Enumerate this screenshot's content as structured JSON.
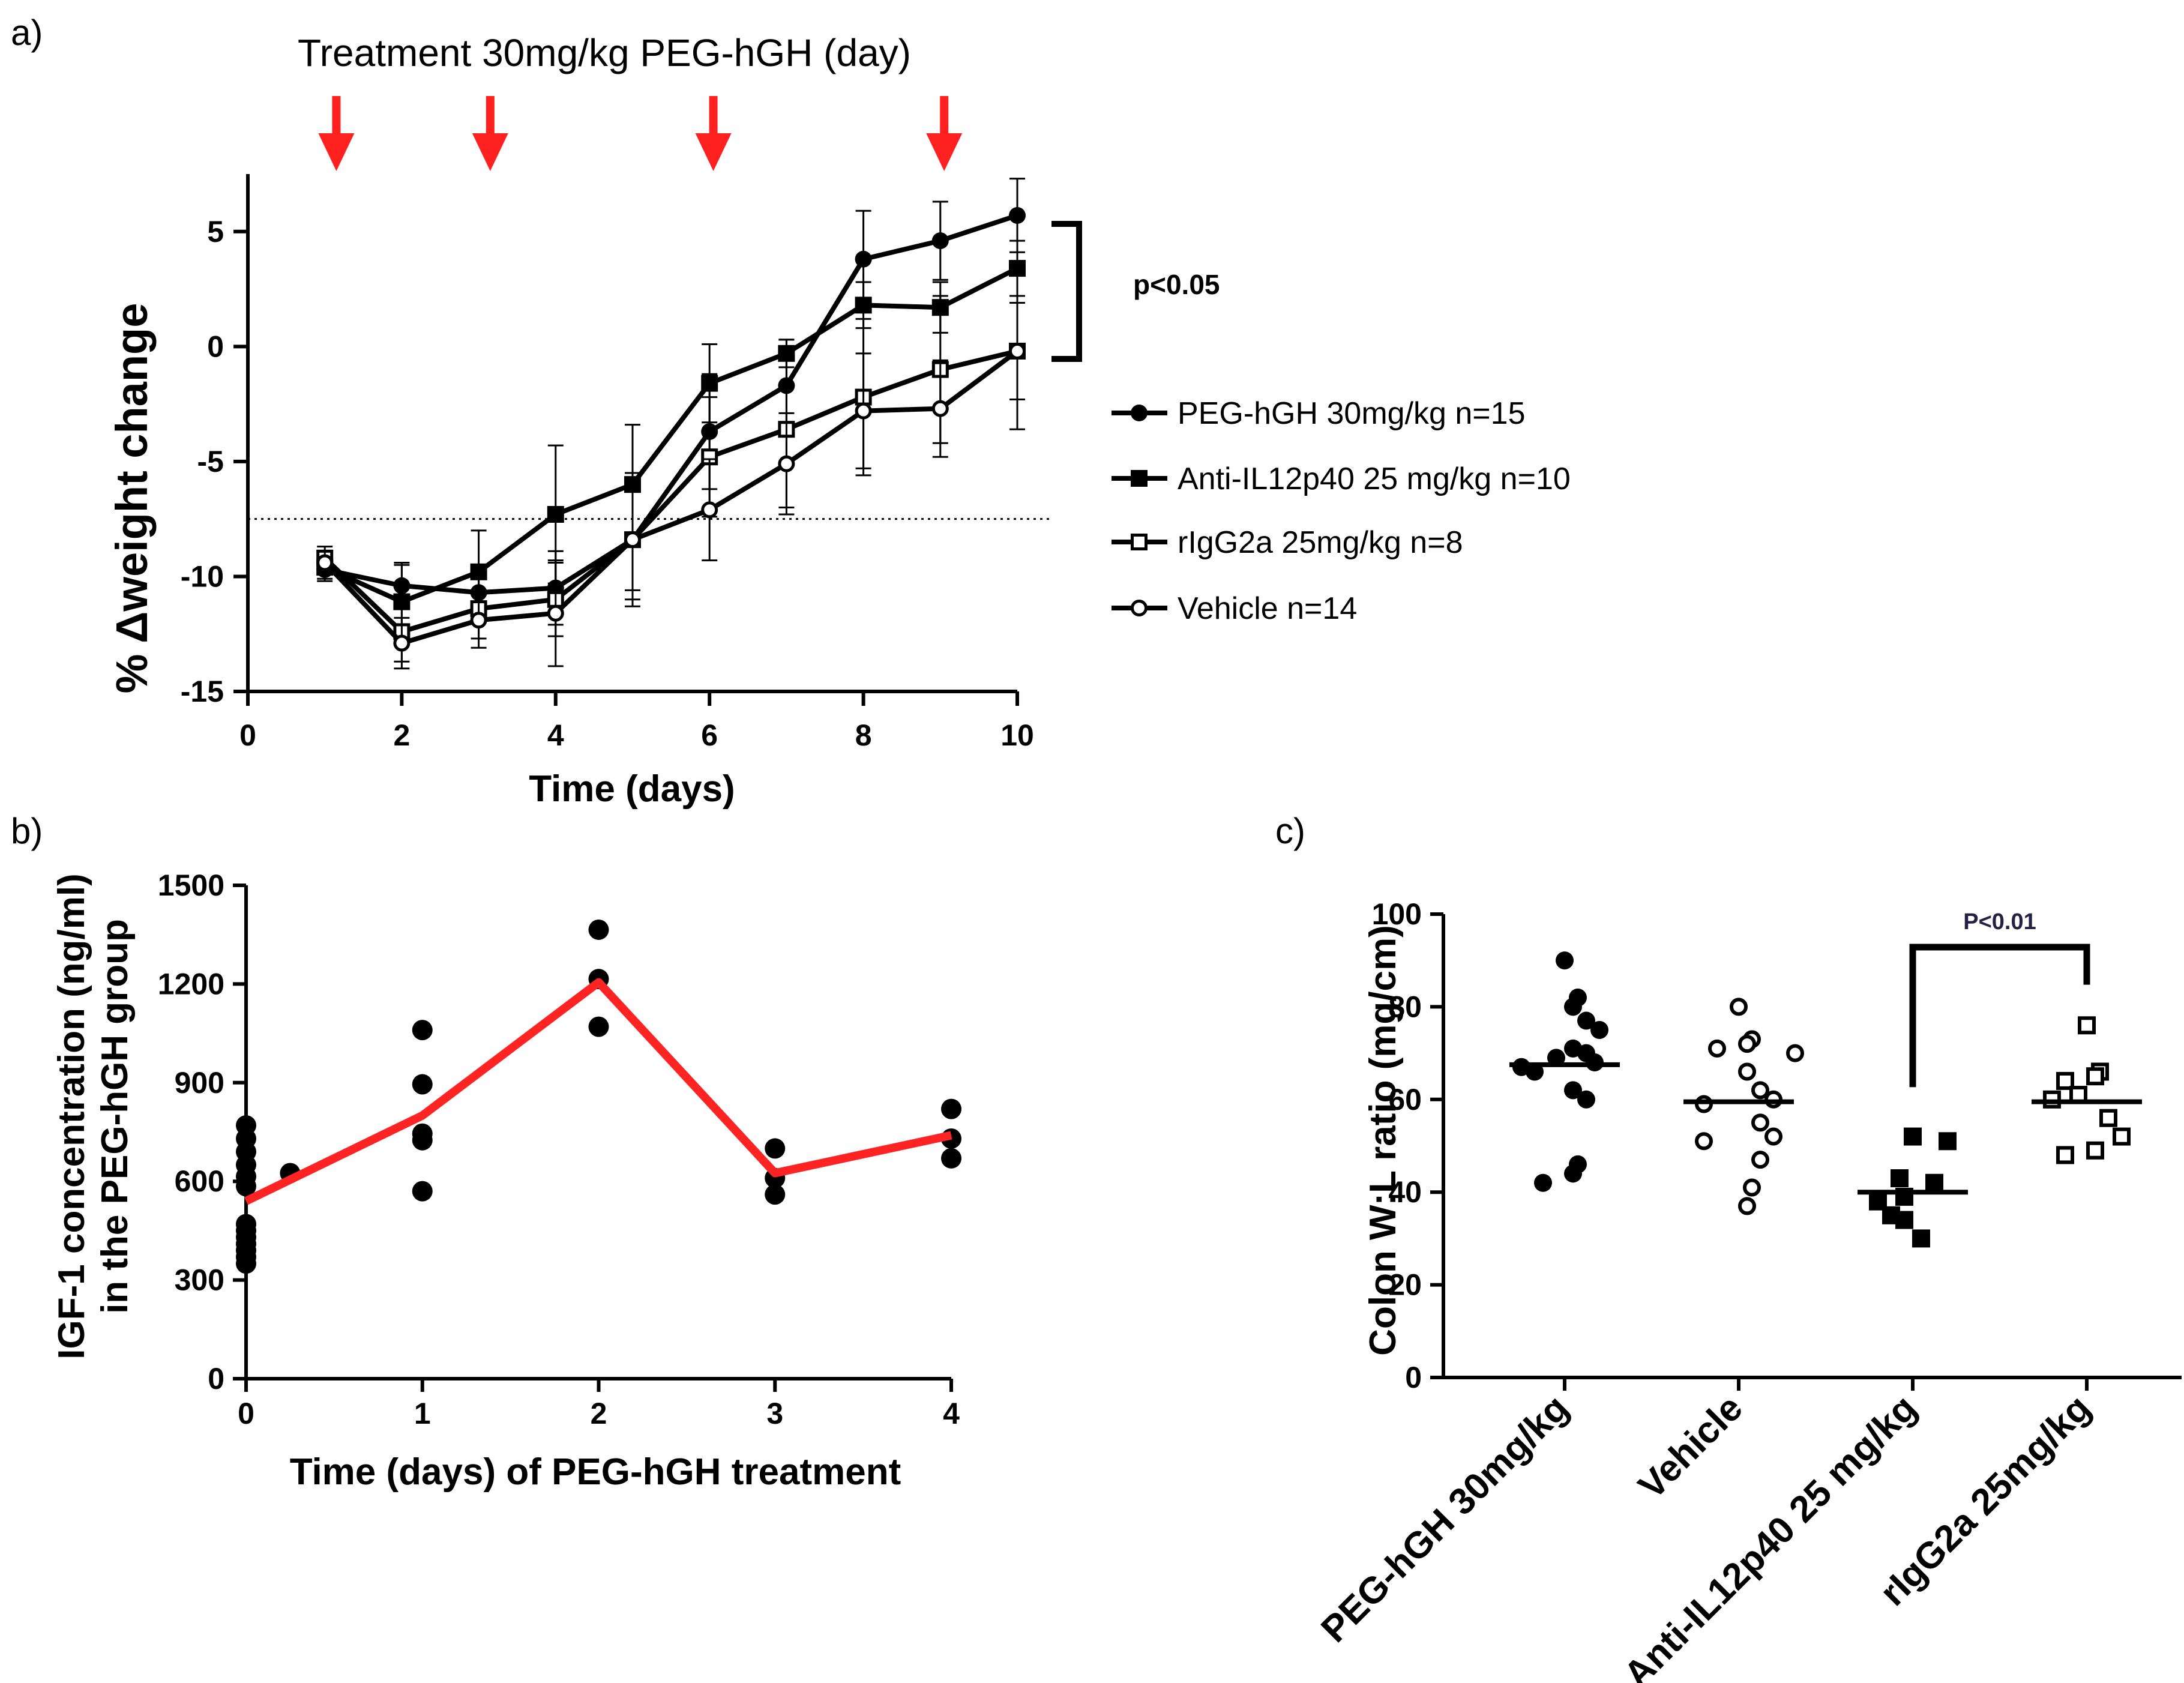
{
  "panel_labels": {
    "a": "a)",
    "b": "b)",
    "c": "c)"
  },
  "colors": {
    "arrow": "#ff2020",
    "mean_line": "#ff2424",
    "ink": "#000000"
  },
  "chart_data": [
    {
      "id": "a",
      "type": "line",
      "title": "Treatment 30mg/kg PEG-hGH (day)",
      "xlabel": "Time (days)",
      "ylabel": "% Δweight change",
      "xlim": [
        0,
        10
      ],
      "ylim": [
        -15,
        7.5
      ],
      "xticks": [
        0,
        2,
        4,
        6,
        8,
        10
      ],
      "yticks": [
        -15,
        -10,
        -5,
        0,
        5
      ],
      "treatment_days": [
        1.15,
        3.15,
        6.05,
        9.05
      ],
      "threshold": -7.5,
      "x": [
        1,
        2,
        3,
        4,
        5,
        6,
        7,
        8,
        9,
        10
      ],
      "series": [
        {
          "name": "PEG-hGH 30mg/kg n=15",
          "marker": "filled-circle",
          "values": [
            -9.7,
            -10.4,
            -10.7,
            -10.5,
            -8.4,
            -3.7,
            -1.7,
            3.8,
            4.6,
            5.7
          ],
          "errors": [
            0.5,
            1.0,
            1.2,
            1.6,
            2.2,
            2.5,
            2.0,
            2.1,
            1.7,
            1.6
          ]
        },
        {
          "name": "Anti-IL12p40 25 mg/kg n=10",
          "marker": "filled-square",
          "values": [
            -9.6,
            -11.1,
            -9.8,
            -7.3,
            -6.0,
            -1.6,
            -0.3,
            1.8,
            1.7,
            3.4
          ],
          "errors": [
            0.5,
            1.6,
            1.8,
            3.0,
            2.6,
            1.7,
            0.6,
            1.0,
            1.1,
            1.2
          ]
        },
        {
          "name": "rIgG2a 25mg/kg n=8",
          "marker": "open-square",
          "values": [
            -9.2,
            -12.4,
            -11.4,
            -11.0,
            -8.4,
            -4.8,
            -3.6,
            -2.2,
            -1.0,
            -0.2
          ],
          "errors": [
            0.5,
            1.3,
            1.3,
            1.6,
            2.6,
            2.6,
            3.4,
            3.4,
            3.2,
            3.4
          ]
        },
        {
          "name": "Vehicle n=14",
          "marker": "open-circle",
          "values": [
            -9.4,
            -12.9,
            -11.9,
            -11.6,
            -8.4,
            -7.1,
            -5.1,
            -2.8,
            -2.7,
            -0.2
          ],
          "errors": [
            0.5,
            1.1,
            1.2,
            2.3,
            2.9,
            2.2,
            2.2,
            2.5,
            2.1,
            2.1
          ]
        }
      ],
      "bracket_label": "p<0.05"
    },
    {
      "id": "b",
      "type": "scatter",
      "xlabel": "Time (days) of PEG-hGH treatment",
      "ylabel_line1": "IGF-1 concentration (ng/ml)",
      "ylabel_line2": "in the PEG-hGH group",
      "xlim": [
        0,
        4
      ],
      "ylim": [
        0,
        1500
      ],
      "xticks": [
        0,
        1,
        2,
        3,
        4
      ],
      "yticks": [
        0,
        300,
        600,
        900,
        1200,
        1500
      ],
      "points": [
        [
          0,
          770
        ],
        [
          0,
          730
        ],
        [
          0,
          690
        ],
        [
          0,
          650
        ],
        [
          0,
          615
        ],
        [
          0,
          585
        ],
        [
          0,
          470
        ],
        [
          0,
          450
        ],
        [
          0,
          430
        ],
        [
          0,
          410
        ],
        [
          0,
          390
        ],
        [
          0,
          370
        ],
        [
          0,
          350
        ],
        [
          0.25,
          625
        ],
        [
          1,
          1060
        ],
        [
          1,
          895
        ],
        [
          1,
          745
        ],
        [
          1,
          725
        ],
        [
          1,
          570
        ],
        [
          2,
          1365
        ],
        [
          2,
          1215
        ],
        [
          2,
          1070
        ],
        [
          3,
          700
        ],
        [
          3,
          610
        ],
        [
          3,
          560
        ],
        [
          4,
          820
        ],
        [
          4,
          730
        ],
        [
          4,
          670
        ]
      ],
      "mean_line": {
        "x": [
          0,
          1,
          2,
          3,
          4
        ],
        "y": [
          540,
          800,
          1205,
          625,
          740
        ]
      }
    },
    {
      "id": "c",
      "type": "scatter",
      "ylabel": "Colon W:L ratio (mg/cm)",
      "ylim": [
        0,
        100
      ],
      "yticks": [
        0,
        20,
        40,
        60,
        80,
        100
      ],
      "categories": [
        "PEG-hGH 30mg/kg",
        "Vehicle",
        "Anti-IL12p40 25 mg/kg",
        "rIgG2a 25mg/kg"
      ],
      "groups": [
        {
          "marker": "filled-circle",
          "mean": 67.5,
          "values": [
            90,
            82,
            80,
            77,
            75,
            71,
            70,
            69,
            68,
            67,
            66,
            62,
            60,
            46,
            44,
            42
          ]
        },
        {
          "marker": "open-circle",
          "mean": 59.5,
          "values": [
            80,
            73,
            72,
            71,
            70,
            66,
            62,
            60,
            59,
            55,
            52,
            51,
            47,
            41,
            37
          ]
        },
        {
          "marker": "filled-square",
          "mean": 40,
          "values": [
            52,
            51,
            43,
            42,
            39,
            38,
            35,
            34,
            30
          ]
        },
        {
          "marker": "open-square",
          "mean": 59.5,
          "values": [
            76,
            66,
            65,
            64,
            61,
            60,
            56,
            52,
            49,
            48
          ]
        }
      ],
      "comparison": {
        "from": 2,
        "to": 3,
        "label": "P<0.01"
      }
    }
  ]
}
